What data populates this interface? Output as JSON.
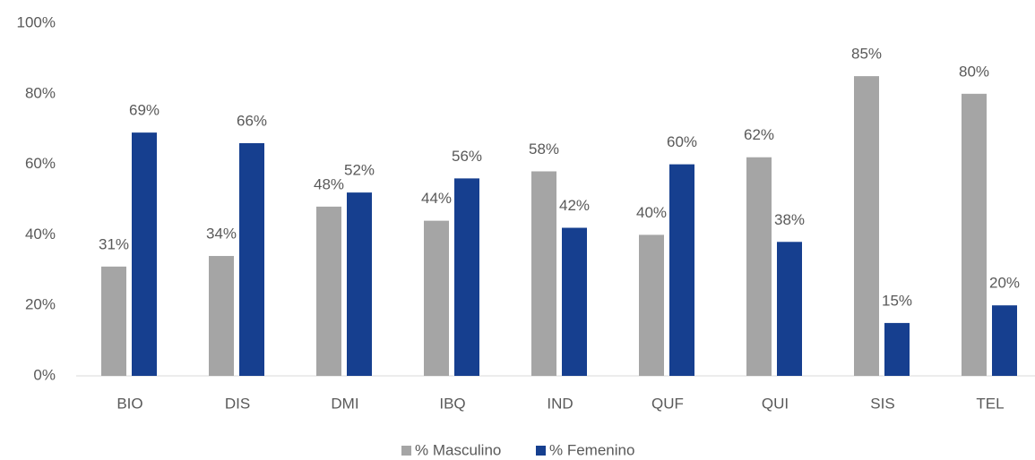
{
  "chart_data": {
    "type": "bar",
    "categories": [
      "BIO",
      "DIS",
      "DMI",
      "IBQ",
      "IND",
      "QUF",
      "QUI",
      "SIS",
      "TEL"
    ],
    "series": [
      {
        "name": "% Masculino",
        "color": "#a5a5a5",
        "values": [
          31,
          34,
          48,
          44,
          58,
          40,
          62,
          85,
          80
        ],
        "value_labels": [
          "31%",
          "34%",
          "48%",
          "44%",
          "58%",
          "40%",
          "62%",
          "85%",
          "80%"
        ]
      },
      {
        "name": "% Femenino",
        "color": "#163f8f",
        "values": [
          69,
          66,
          52,
          56,
          42,
          60,
          38,
          15,
          20
        ],
        "value_labels": [
          "69%",
          "66%",
          "52%",
          "56%",
          "42%",
          "60%",
          "38%",
          "15%",
          "20%"
        ]
      }
    ],
    "ylim": [
      0,
      100
    ],
    "yticks": [
      {
        "value": 0,
        "label": "0%"
      },
      {
        "value": 20,
        "label": "20%"
      },
      {
        "value": 40,
        "label": "40%"
      },
      {
        "value": 60,
        "label": "60%"
      },
      {
        "value": 80,
        "label": "80%"
      },
      {
        "value": 100,
        "label": "100%"
      }
    ],
    "grid": false,
    "legend": "bottom"
  }
}
